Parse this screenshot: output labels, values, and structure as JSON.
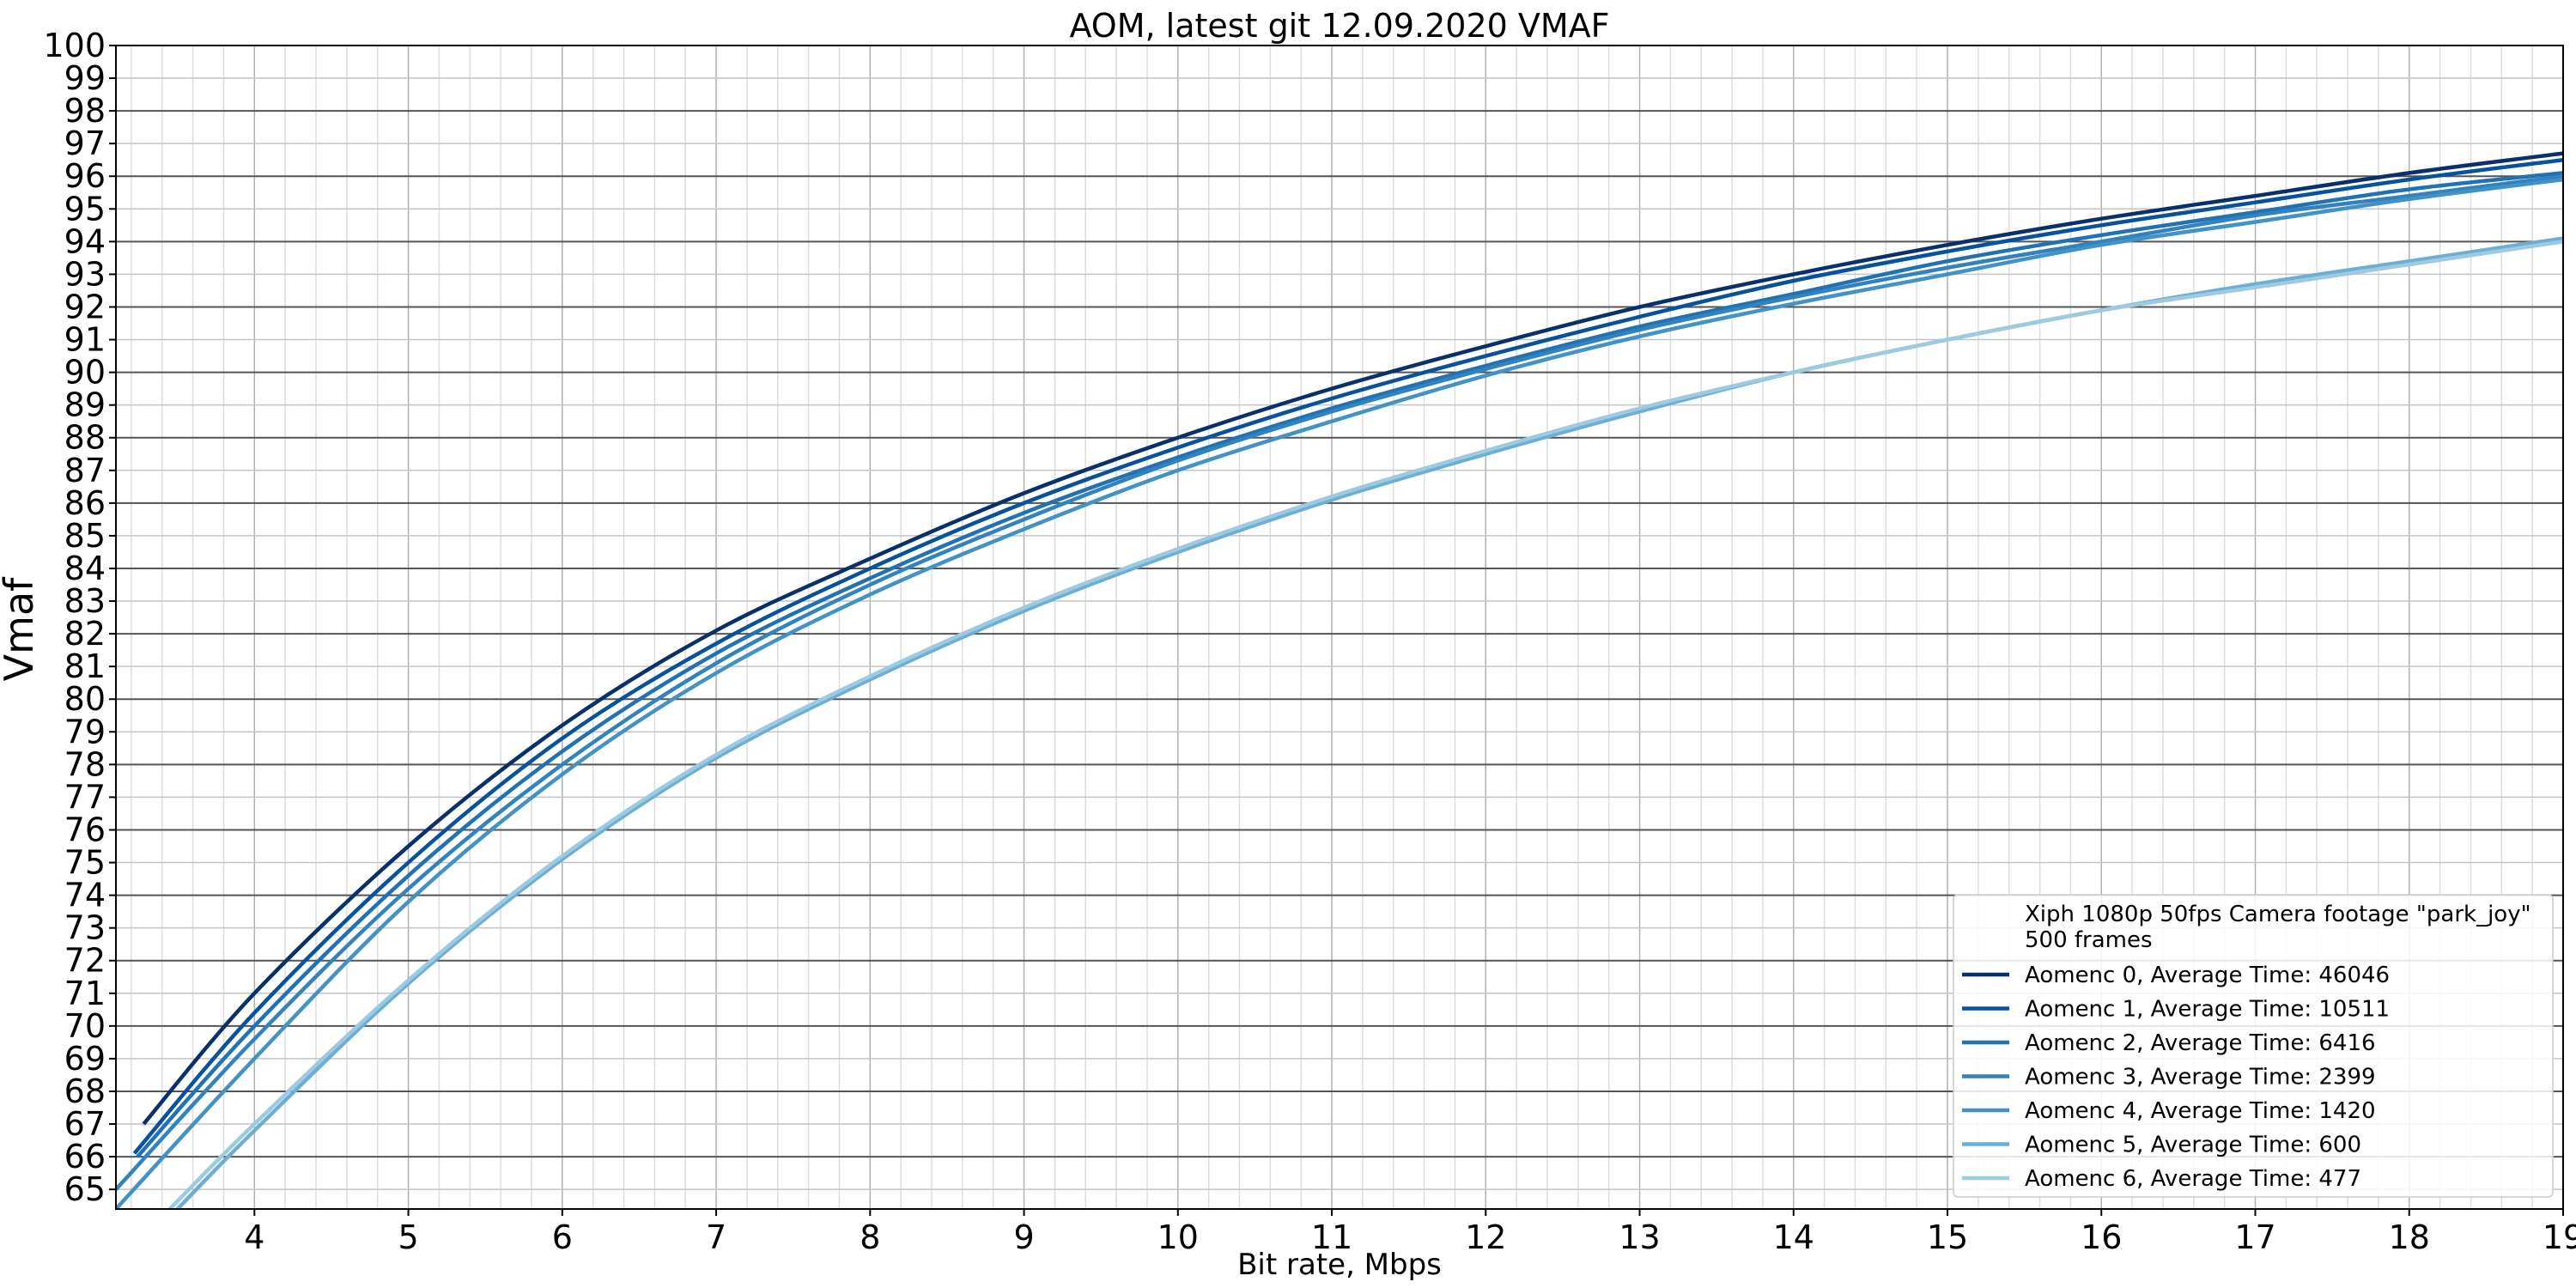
{
  "chart_data": {
    "type": "line",
    "title": "AOM, latest git 12.09.2020 VMAF",
    "xlabel": "Bit rate, Mbps",
    "ylabel": "Vmaf",
    "xlim": [
      3.1,
      19.0
    ],
    "ylim": [
      64.4,
      100
    ],
    "xticks": [
      4,
      5,
      6,
      7,
      8,
      9,
      10,
      11,
      12,
      13,
      14,
      15,
      16,
      17,
      18,
      19
    ],
    "yticks": [
      65,
      66,
      67,
      68,
      69,
      70,
      71,
      72,
      73,
      74,
      75,
      76,
      77,
      78,
      79,
      80,
      81,
      82,
      83,
      84,
      85,
      86,
      87,
      88,
      89,
      90,
      91,
      92,
      93,
      94,
      95,
      96,
      97,
      98,
      99,
      100
    ],
    "grid": true,
    "legend_position": "lower-right",
    "legend_title": [
      "Xiph 1080p 50fps Camera footage \"park_joy\"",
      "500 frames"
    ],
    "series": [
      {
        "name": "Aomenc 0, Average Time: 46046",
        "color": "#08306b",
        "x": [
          3.28,
          4,
          5,
          6,
          7,
          8,
          9,
          10,
          11,
          12,
          13,
          14,
          15,
          16,
          17,
          18,
          19
        ],
        "y": [
          67.0,
          71.0,
          75.5,
          79.2,
          82.1,
          84.3,
          86.3,
          88.0,
          89.5,
          90.8,
          92.0,
          93.0,
          93.9,
          94.7,
          95.4,
          96.1,
          96.7
        ]
      },
      {
        "name": "Aomenc 1, Average Time: 10511",
        "color": "#08519c",
        "x": [
          3.22,
          4,
          5,
          6,
          7,
          8,
          9,
          10,
          11,
          12,
          13,
          14,
          15,
          16,
          17,
          18,
          19
        ],
        "y": [
          66.1,
          70.4,
          75.0,
          78.8,
          81.7,
          84.0,
          86.0,
          87.7,
          89.2,
          90.5,
          91.7,
          92.8,
          93.7,
          94.5,
          95.2,
          95.9,
          96.5
        ]
      },
      {
        "name": "Aomenc 2, Average Time: 6416",
        "color": "#2171b5",
        "x": [
          3.24,
          4,
          5,
          6,
          7,
          8,
          9,
          10,
          11,
          12,
          13,
          14,
          15,
          16,
          17,
          18,
          19
        ],
        "y": [
          66.0,
          70.0,
          74.6,
          78.4,
          81.4,
          83.7,
          85.7,
          87.4,
          88.9,
          90.2,
          91.4,
          92.4,
          93.4,
          94.2,
          94.9,
          95.6,
          96.1
        ]
      },
      {
        "name": "Aomenc 3, Average Time: 2399",
        "color": "#3182bd",
        "x": [
          3.1,
          4,
          5,
          6,
          7,
          8,
          9,
          10,
          11,
          12,
          13,
          14,
          15,
          16,
          17,
          18,
          19
        ],
        "y": [
          65.0,
          69.6,
          74.2,
          78.0,
          81.1,
          83.5,
          85.5,
          87.3,
          88.8,
          90.1,
          91.3,
          92.3,
          93.2,
          94.0,
          94.8,
          95.4,
          96.0
        ]
      },
      {
        "name": "Aomenc 4, Average Time: 1420",
        "color": "#4292c6",
        "x": [
          3.1,
          4,
          5,
          6,
          7,
          8,
          9,
          10,
          11,
          12,
          13,
          14,
          15,
          16,
          17,
          18,
          19
        ],
        "y": [
          64.4,
          69.0,
          73.8,
          77.7,
          80.8,
          83.2,
          85.2,
          87.0,
          88.5,
          89.9,
          91.1,
          92.1,
          93.0,
          93.9,
          94.6,
          95.3,
          95.9
        ]
      },
      {
        "name": "Aomenc 5, Average Time: 600",
        "color": "#6baed6",
        "x": [
          3.5,
          4,
          5,
          6,
          7,
          8,
          9,
          10,
          11,
          12,
          13,
          14,
          15,
          16,
          17,
          18,
          19
        ],
        "y": [
          64.4,
          66.8,
          71.3,
          75.1,
          78.2,
          80.6,
          82.7,
          84.5,
          86.1,
          87.5,
          88.8,
          90.0,
          91.0,
          91.9,
          92.7,
          93.4,
          94.1
        ]
      },
      {
        "name": "Aomenc 6, Average Time: 477",
        "color": "#9ecae1",
        "x": [
          3.45,
          4,
          5,
          6,
          7,
          8,
          9,
          10,
          11,
          12,
          13,
          14,
          15,
          16,
          17,
          18,
          19
        ],
        "y": [
          64.4,
          67.0,
          71.4,
          75.2,
          78.3,
          80.7,
          82.8,
          84.6,
          86.2,
          87.6,
          88.9,
          90.0,
          91.0,
          91.9,
          92.6,
          93.3,
          94.0
        ]
      }
    ]
  }
}
